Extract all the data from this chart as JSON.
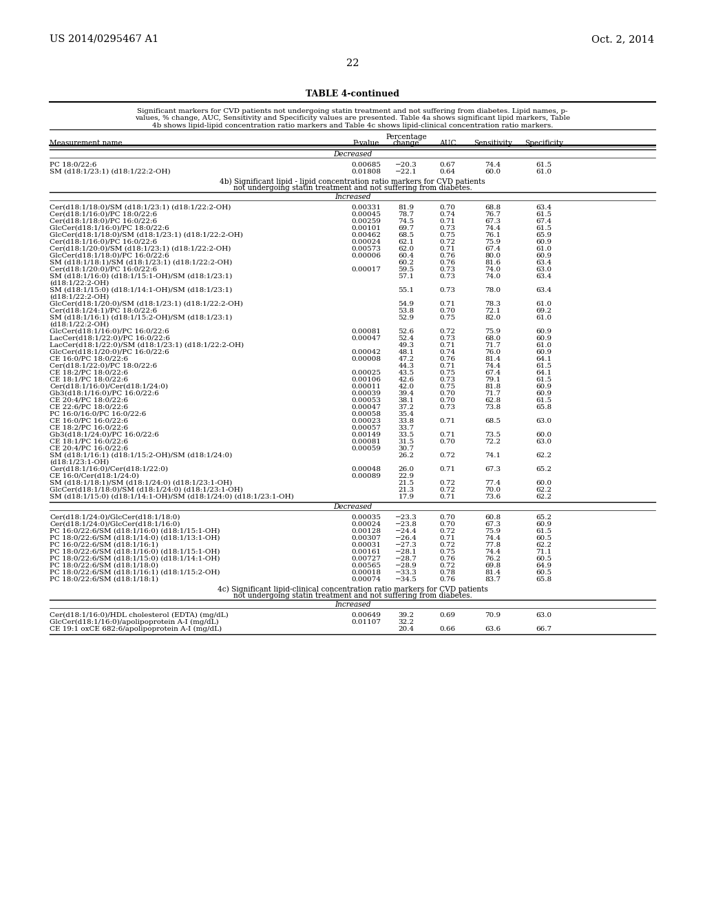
{
  "header_left": "US 2014/0295467 A1",
  "header_right": "Oct. 2, 2014",
  "page_number": "22",
  "table_title": "TABLE 4-continued",
  "caption_lines": [
    "Significant markers for CVD patients not undergoing statin treatment and not suffering from diabetes. Lipid names, p-",
    "values, % change, AUC, Sensitivity and Specificity values are presented. Table 4a shows significant lipid markers, Table",
    "4b shows lipid-lipid concentration ratio markers and Table 4c shows lipid-clinical concentration ratio markers."
  ],
  "col_pval": 532,
  "col_change": 590,
  "col_auc": 650,
  "col_sens": 716,
  "col_spec": 790,
  "sections": [
    {
      "type": "label",
      "text": "Decreased"
    },
    {
      "type": "data",
      "rows": [
        [
          "PC 18:0/22:6",
          "0.00685",
          "−20.3",
          "0.67",
          "74.4",
          "61.5"
        ],
        [
          "SM (d18:1/23:1) (d18:1/22:2-OH)",
          "0.01808",
          "−22.1",
          "0.64",
          "60.0",
          "61.0"
        ]
      ]
    },
    {
      "type": "title",
      "lines": [
        "4b) Significant lipid - lipid concentration ratio markers for CVD patients",
        "not undergoing statin treatment and not suffering from diabetes."
      ]
    },
    {
      "type": "label",
      "text": "Increased"
    },
    {
      "type": "data",
      "rows": [
        [
          "Cer(d18:1/18:0)/SM (d18:1/23:1) (d18:1/22:2-OH)",
          "0.00331",
          "81.9",
          "0.70",
          "68.8",
          "63.4"
        ],
        [
          "Cer(d18:1/16:0)/PC 18:0/22:6",
          "0.00045",
          "78.7",
          "0.74",
          "76.7",
          "61.5"
        ],
        [
          "Cer(d18:1/18:0)/PC 16:0/22:6",
          "0.00259",
          "74.5",
          "0.71",
          "67.3",
          "67.4"
        ],
        [
          "GlcCer(d18:1/16:0)/PC 18:0/22:6",
          "0.00101",
          "69.7",
          "0.73",
          "74.4",
          "61.5"
        ],
        [
          "GlcCer(d18:1/18:0)/SM (d18:1/23:1) (d18:1/22:2-OH)",
          "0.00462",
          "68.5",
          "0.75",
          "76.1",
          "65.9"
        ],
        [
          "Cer(d18:1/16:0)/PC 16:0/22:6",
          "0.00024",
          "62.1",
          "0.72",
          "75.9",
          "60.9"
        ],
        [
          "Cer(d18:1/20:0)/SM (d18:1/23:1) (d18:1/22:2-OH)",
          "0.00573",
          "62.0",
          "0.71",
          "67.4",
          "61.0"
        ],
        [
          "GlcCer(d18:1/18:0)/PC 16:0/22:6",
          "0.00006",
          "60.4",
          "0.76",
          "80.0",
          "60.9"
        ],
        [
          "SM (d18:1/18:1)/SM (d18:1/23:1) (d18:1/22:2-OH)",
          "",
          "60.2",
          "0.76",
          "81.6",
          "63.4"
        ],
        [
          "Cer(d18:1/20:0)/PC 16:0/22:6",
          "0.00017",
          "59.5",
          "0.73",
          "74.0",
          "63.0"
        ],
        [
          "SM (d18:1/16:0) (d18:1/15:1-OH)/SM (d18:1/23:1)\n(d18:1/22:2-OH)",
          "",
          "57.1",
          "0.73",
          "74.0",
          "63.4"
        ],
        [
          "SM (d18:1/15:0) (d18:1/14:1-OH)/SM (d18:1/23:1)\n(d18:1/22:2-OH)",
          "",
          "55.1",
          "0.73",
          "78.0",
          "63.4"
        ],
        [
          "GlcCer(d18:1/20:0)/SM (d18:1/23:1) (d18:1/22:2-OH)",
          "",
          "54.9",
          "0.71",
          "78.3",
          "61.0"
        ],
        [
          "Cer(d18:1/24:1)/PC 18:0/22:6",
          "",
          "53.8",
          "0.70",
          "72.1",
          "69.2"
        ],
        [
          "SM (d18:1/16:1) (d18:1/15:2-OH)/SM (d18:1/23:1)\n(d18:1/22:2-OH)",
          "",
          "52.9",
          "0.75",
          "82.0",
          "61.0"
        ],
        [
          "GlcCer(d18:1/16:0)/PC 16:0/22:6",
          "0.00081",
          "52.6",
          "0.72",
          "75.9",
          "60.9"
        ],
        [
          "LacCer(d18:1/22:0)/PC 16:0/22:6",
          "0.00047",
          "52.4",
          "0.73",
          "68.0",
          "60.9"
        ],
        [
          "LacCer(d18:1/22:0)/SM (d18:1/23:1) (d18:1/22:2-OH)",
          "",
          "49.3",
          "0.71",
          "71.7",
          "61.0"
        ],
        [
          "GlcCer(d18:1/20:0)/PC 16:0/22:6",
          "0.00042",
          "48.1",
          "0.74",
          "76.0",
          "60.9"
        ],
        [
          "CE 16:0/PC 18:0/22:6",
          "0.00008",
          "47.2",
          "0.76",
          "81.4",
          "64.1"
        ],
        [
          "Cer(d18:1/22:0)/PC 18:0/22:6",
          "",
          "44.3",
          "0.71",
          "74.4",
          "61.5"
        ],
        [
          "CE 18:2/PC 18:0/22:6",
          "0.00025",
          "43.5",
          "0.75",
          "67.4",
          "64.1"
        ],
        [
          "CE 18:1/PC 18:0/22:6",
          "0.00106",
          "42.6",
          "0.73",
          "79.1",
          "61.5"
        ],
        [
          "Cer(d18:1/16:0)/Cer(d18:1/24:0)",
          "0.00011",
          "42.0",
          "0.75",
          "81.8",
          "60.9"
        ],
        [
          "Gb3(d18:1/16:0)/PC 16:0/22:6",
          "0.00039",
          "39.4",
          "0.70",
          "71.7",
          "60.9"
        ],
        [
          "CE 20:4/PC 18:0/22:6",
          "0.00053",
          "38.1",
          "0.70",
          "62.8",
          "61.5"
        ],
        [
          "CE 22:6/PC 18:0/22:6",
          "0.00047",
          "37.2",
          "0.73",
          "73.8",
          "65.8"
        ],
        [
          "PC 16:0/16:0/PC 16:0/22:6",
          "0.00058",
          "35.4",
          "",
          "",
          ""
        ],
        [
          "CE 16:0/PC 16:0/22:6",
          "0.00023",
          "33.8",
          "0.71",
          "68.5",
          "63.0"
        ],
        [
          "CE 18:2/PC 16:0/22:6",
          "0.00057",
          "33.7",
          "",
          "",
          ""
        ],
        [
          "Gb3(d18:1/24:0)/PC 16:0/22:6",
          "0.00149",
          "33.5",
          "0.71",
          "73.5",
          "60.0"
        ],
        [
          "CE 18:1/PC 16:0/22:6",
          "0.00081",
          "31.5",
          "0.70",
          "72.2",
          "63.0"
        ],
        [
          "CE 20:4/PC 16:0/22:6",
          "0.00059",
          "30.7",
          "",
          "",
          ""
        ],
        [
          "SM (d18:1/16:1) (d18:1/15:2-OH)/SM (d18:1/24:0)\n(d18:1/23:1-OH)",
          "",
          "26.2",
          "0.72",
          "74.1",
          "62.2"
        ],
        [
          "Cer(d18:1/16:0)/Cer(d18:1/22:0)",
          "0.00048",
          "26.0",
          "0.71",
          "67.3",
          "65.2"
        ],
        [
          "CE 16:0/Cer(d18:1/24:0)",
          "0.00089",
          "22.9",
          "",
          "",
          ""
        ],
        [
          "SM (d18:1/18:1)/SM (d18:1/24:0) (d18:1/23:1-OH)",
          "",
          "21.5",
          "0.72",
          "77.4",
          "60.0"
        ],
        [
          "GlcCer(d18:1/18:0)/SM (d18:1/24:0) (d18:1/23:1-OH)",
          "",
          "21.3",
          "0.72",
          "70.0",
          "62.2"
        ],
        [
          "SM (d18:1/15:0) (d18:1/14:1-OH)/SM (d18:1/24:0) (d18:1/23:1-OH)",
          "",
          "17.9",
          "0.71",
          "73.6",
          "62.2"
        ]
      ]
    },
    {
      "type": "label",
      "text": "Decreased"
    },
    {
      "type": "data",
      "rows": [
        [
          "Cer(d18:1/24:0)/GlcCer(d18:1/18:0)",
          "0.00035",
          "−23.3",
          "0.70",
          "60.8",
          "65.2"
        ],
        [
          "Cer(d18:1/24:0)/GlcCer(d18:1/16:0)",
          "0.00024",
          "−23.8",
          "0.70",
          "67.3",
          "60.9"
        ],
        [
          "PC 16:0/22:6/SM (d18:1/16:0) (d18:1/15:1-OH)",
          "0.00128",
          "−24.4",
          "0.72",
          "75.9",
          "61.5"
        ],
        [
          "PC 18:0/22:6/SM (d18:1/14:0) (d18:1/13:1-OH)",
          "0.00307",
          "−26.4",
          "0.71",
          "74.4",
          "60.5"
        ],
        [
          "PC 16:0/22:6/SM (d18:1/16:1)",
          "0.00031",
          "−27.3",
          "0.72",
          "77.8",
          "62.2"
        ],
        [
          "PC 18:0/22:6/SM (d18:1/16:0) (d18:1/15:1-OH)",
          "0.00161",
          "−28.1",
          "0.75",
          "74.4",
          "71.1"
        ],
        [
          "PC 18:0/22:6/SM (d18:1/15:0) (d18:1/14:1-OH)",
          "0.00727",
          "−28.7",
          "0.76",
          "76.2",
          "60.5"
        ],
        [
          "PC 18:0/22:6/SM (d18:1/18:0)",
          "0.00565",
          "−28.9",
          "0.72",
          "69.8",
          "64.9"
        ],
        [
          "PC 18:0/22:6/SM (d18:1/16:1) (d18:1/15:2-OH)",
          "0.00018",
          "−33.3",
          "0.78",
          "81.4",
          "60.5"
        ],
        [
          "PC 18:0/22:6/SM (d18:1/18:1)",
          "0.00074",
          "−34.5",
          "0.76",
          "83.7",
          "65.8"
        ]
      ]
    },
    {
      "type": "title",
      "lines": [
        "4c) Significant lipid-clinical concentration ratio markers for CVD patients",
        "not undergoing statin treatment and not suffering from diabetes."
      ]
    },
    {
      "type": "label",
      "text": "Increased"
    },
    {
      "type": "data",
      "rows": [
        [
          "Cer(d18:1/16:0)/HDL cholesterol (EDTA) (mg/dL)",
          "0.00649",
          "39.2",
          "0.69",
          "70.9",
          "63.0"
        ],
        [
          "GlcCer(d18:1/16:0)/apolipoprotein A-I (mg/dL)",
          "0.01107",
          "32.2",
          "",
          "",
          ""
        ],
        [
          "CE 19:1 oxCE 682:6/apolipoprotein A-I (mg/dL)",
          "",
          "20.4",
          "0.66",
          "63.6",
          "66.7"
        ]
      ]
    },
    {
      "type": "end_line"
    }
  ]
}
